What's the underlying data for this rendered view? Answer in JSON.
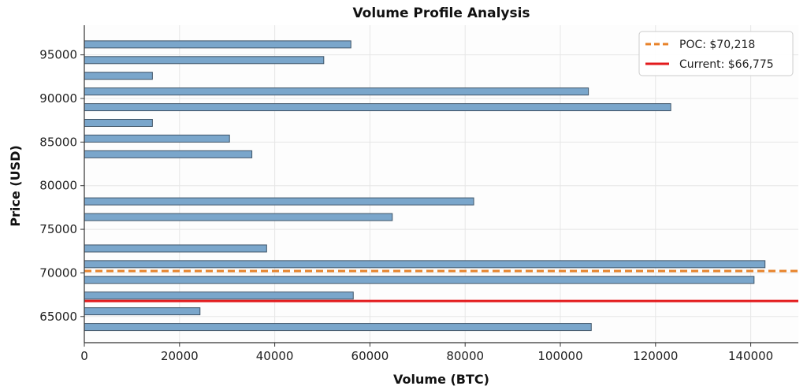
{
  "chart_data": {
    "type": "bar",
    "orientation": "horizontal",
    "title": "Volume Profile Analysis",
    "xlabel": "Volume (BTC)",
    "ylabel": "Price (USD)",
    "xlim": [
      0,
      150000
    ],
    "ylim": [
      62000,
      98400
    ],
    "xticks": [
      0,
      20000,
      40000,
      60000,
      80000,
      100000,
      120000,
      140000
    ],
    "yticks": [
      65000,
      70000,
      75000,
      80000,
      85000,
      90000,
      95000
    ],
    "grid": true,
    "legend_position": "top-right",
    "bar_color": "#7aa6cb",
    "bar_edge_color": "#3f5568",
    "bars": [
      {
        "price": 63800,
        "volume": 106500
      },
      {
        "price": 65600,
        "volume": 24300
      },
      {
        "price": 67400,
        "volume": 56500
      },
      {
        "price": 69200,
        "volume": 140700
      },
      {
        "price": 71000,
        "volume": 143000
      },
      {
        "price": 72800,
        "volume": 38300
      },
      {
        "price": 74600,
        "volume": 0
      },
      {
        "price": 76400,
        "volume": 64700
      },
      {
        "price": 78200,
        "volume": 81800
      },
      {
        "price": 80000,
        "volume": 0
      },
      {
        "price": 81800,
        "volume": 0
      },
      {
        "price": 83600,
        "volume": 35200
      },
      {
        "price": 85400,
        "volume": 30500
      },
      {
        "price": 87200,
        "volume": 14300
      },
      {
        "price": 89000,
        "volume": 123200
      },
      {
        "price": 90800,
        "volume": 105900
      },
      {
        "price": 92600,
        "volume": 14300
      },
      {
        "price": 94400,
        "volume": 50300
      },
      {
        "price": 96200,
        "volume": 56000
      }
    ],
    "lines": [
      {
        "name": "POC: $70,218",
        "price": 70218,
        "color": "#e8832a",
        "style": "dashed"
      },
      {
        "name": "Current: $66,775",
        "price": 66775,
        "color": "#e31a1c",
        "style": "solid"
      }
    ]
  }
}
